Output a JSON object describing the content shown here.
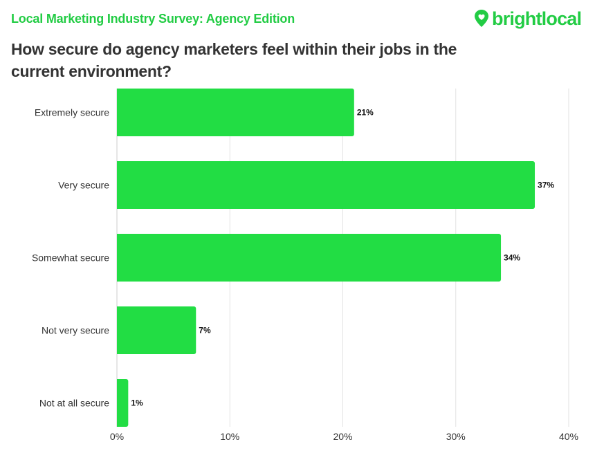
{
  "header": {
    "survey_title": "Local Marketing Industry Survey: Agency Edition",
    "question": "How secure do agency marketers feel within their jobs in the current environment?"
  },
  "logo": {
    "text": "brightlocal",
    "icon": "map-pin-heart-icon",
    "color": "#22cc44"
  },
  "colors": {
    "bar": "#22dd44",
    "grid": "#e2e2e2",
    "axis": "#cccccc"
  },
  "chart_data": {
    "type": "bar",
    "orientation": "horizontal",
    "title": "How secure do agency marketers feel within their jobs in the current environment?",
    "categories": [
      "Extremely secure",
      "Very secure",
      "Somewhat secure",
      "Not very secure",
      "Not at all secure"
    ],
    "values": [
      21,
      37,
      34,
      7,
      1
    ],
    "value_labels": [
      "21%",
      "37%",
      "34%",
      "7%",
      "1%"
    ],
    "xlim": [
      0,
      40
    ],
    "xticks": [
      0,
      10,
      20,
      30,
      40
    ],
    "xtick_labels": [
      "0%",
      "10%",
      "20%",
      "30%",
      "40%"
    ],
    "xlabel": "",
    "ylabel": "",
    "grid": true
  }
}
